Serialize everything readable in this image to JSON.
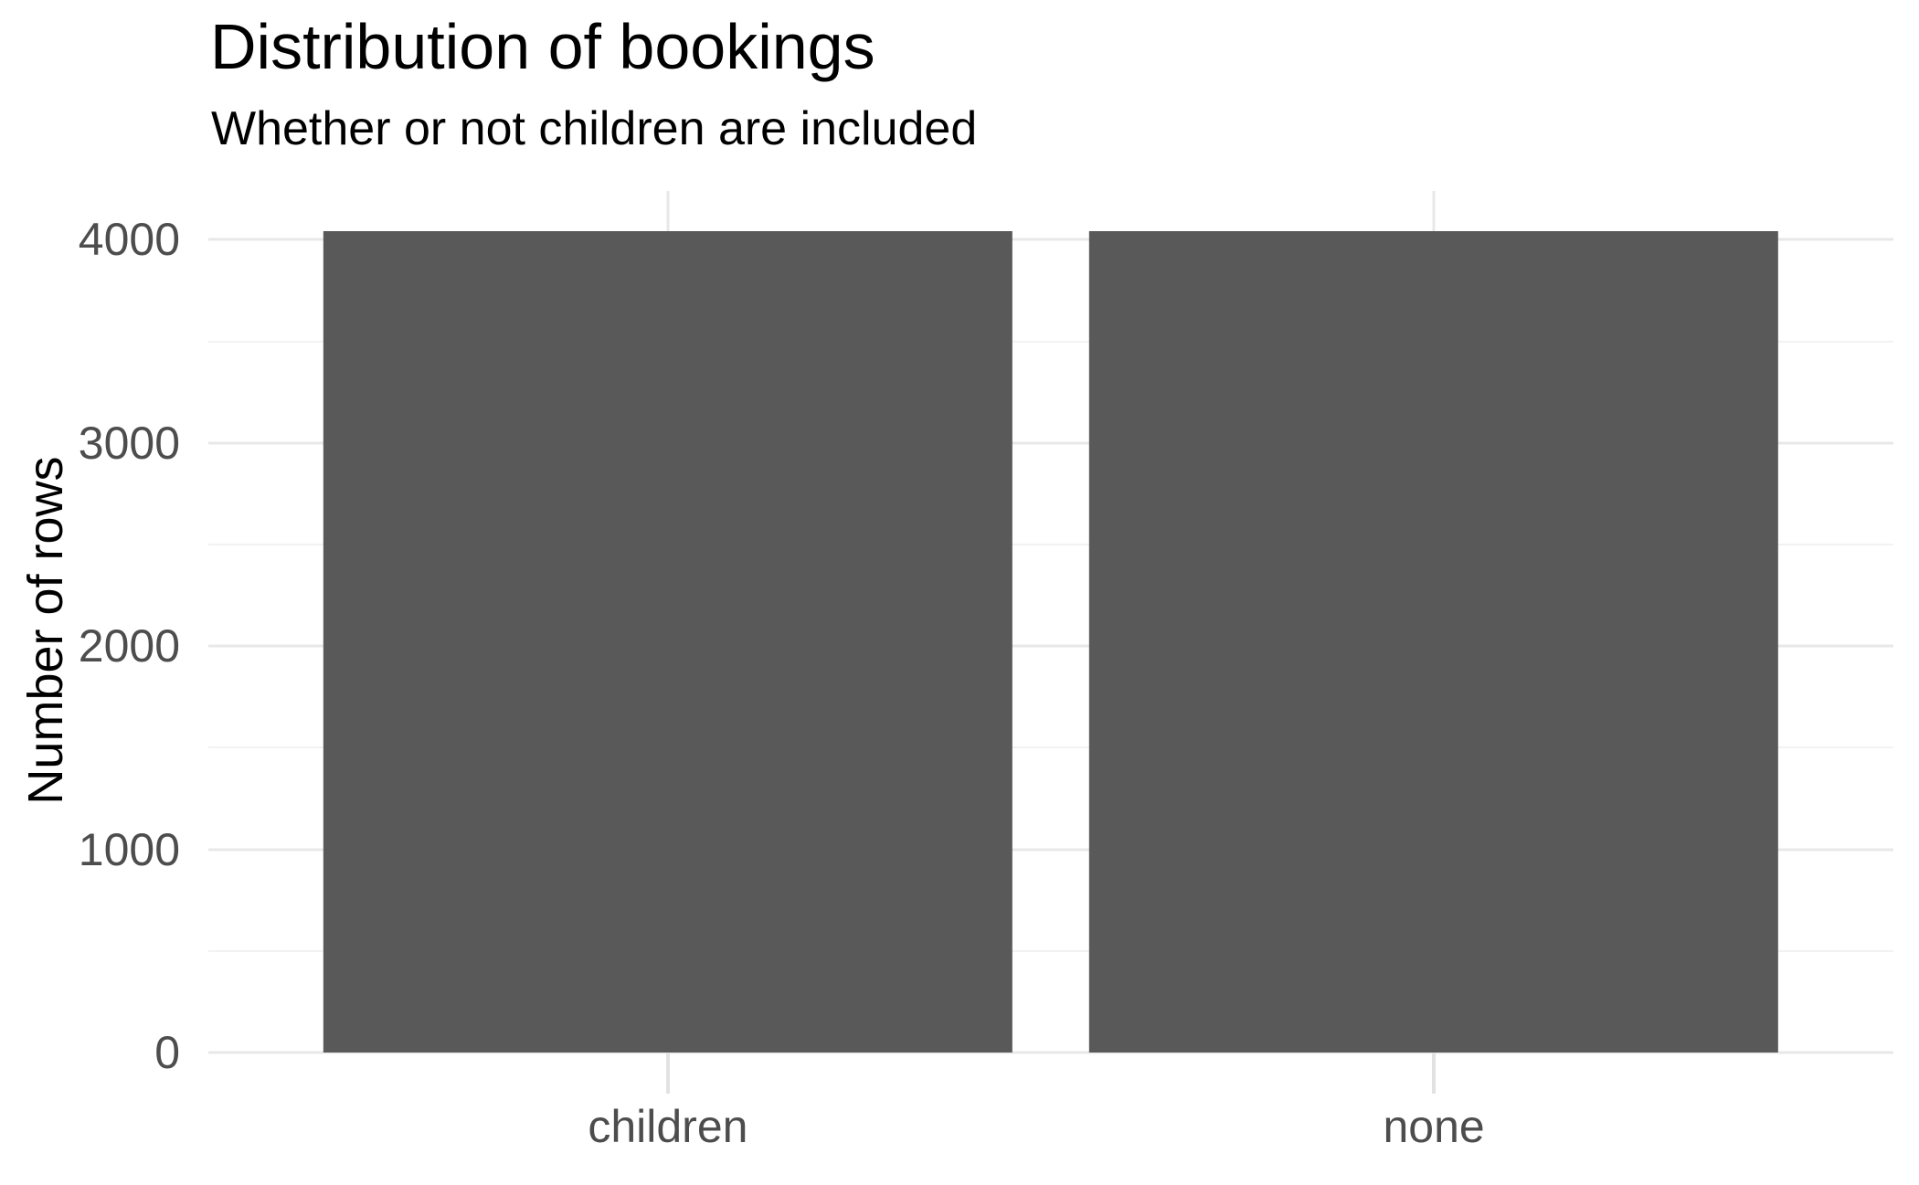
{
  "chart_data": {
    "type": "bar",
    "title": "Distribution of bookings",
    "subtitle": "Whether or not children are included",
    "xlabel": "",
    "ylabel": "Number of rows",
    "categories": [
      "children",
      "none"
    ],
    "values": [
      4040,
      4040
    ],
    "ylim": [
      0,
      4240
    ],
    "yticks_major": [
      0,
      1000,
      2000,
      3000,
      4000
    ],
    "yticks_minor": [
      500,
      1500,
      2500,
      3500
    ],
    "grid": true,
    "legend_position": "none",
    "style": {
      "bar_fill": "#595959",
      "grid_major_color": "#E8E8E8",
      "grid_minor_color": "#F2F2F2",
      "x_tick_mark_color": "#E2E2E2",
      "axis_text_color": "#4D4D4D",
      "title_color": "#000000",
      "background": "#FFFFFF"
    }
  }
}
